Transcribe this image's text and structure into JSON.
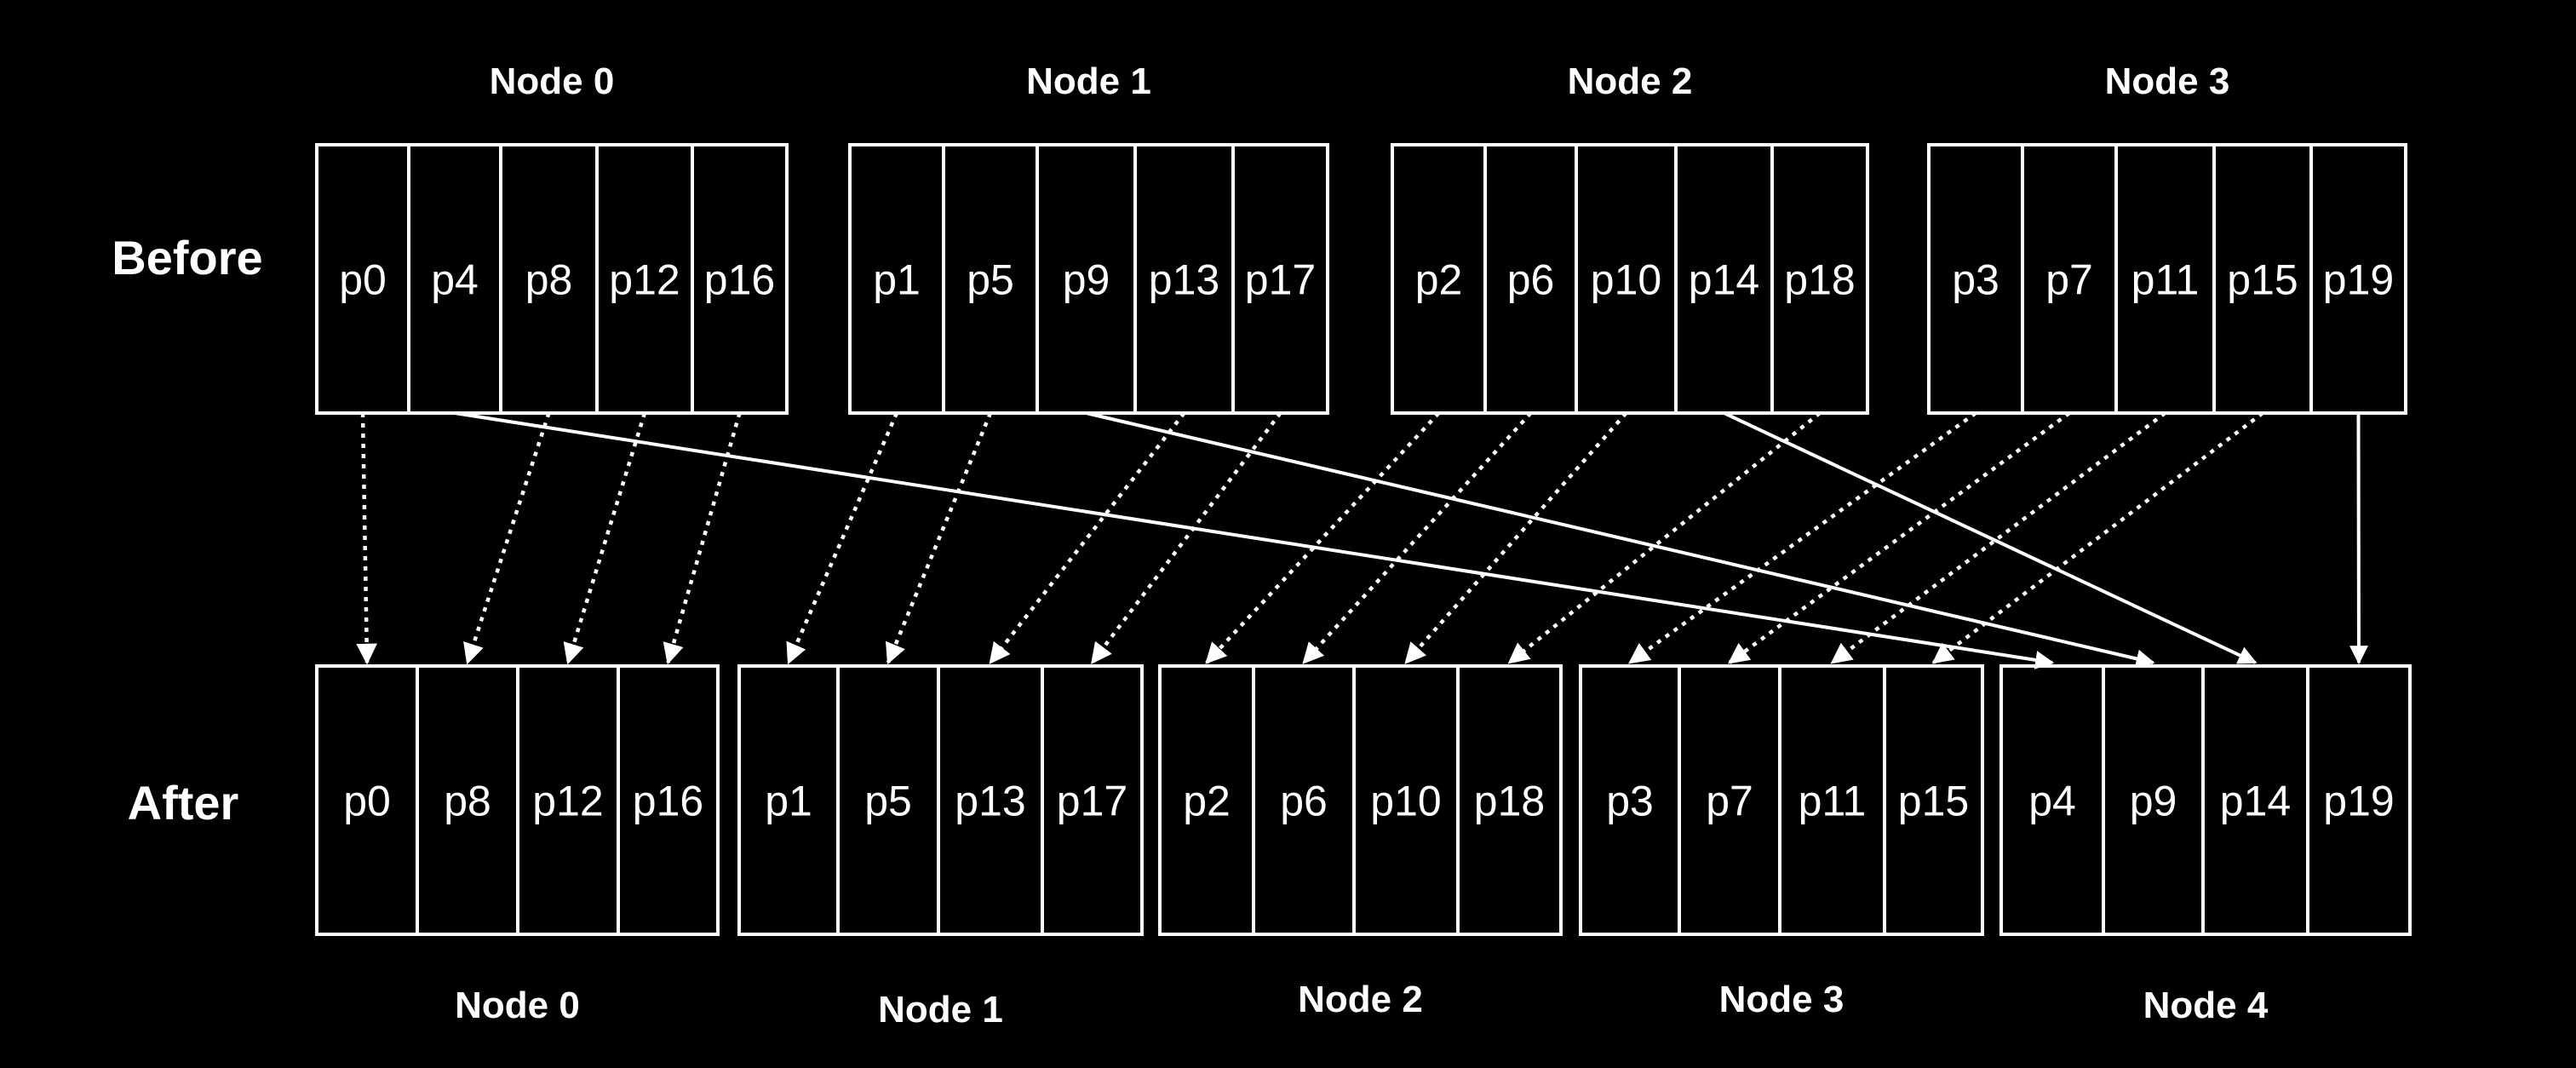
{
  "before": {
    "row_label": "Before",
    "nodes": [
      {
        "label": "Node 0",
        "partitions": [
          "p0",
          "p4",
          "p8",
          "p12",
          "p16"
        ]
      },
      {
        "label": "Node 1",
        "partitions": [
          "p1",
          "p5",
          "p9",
          "p13",
          "p17"
        ]
      },
      {
        "label": "Node 2",
        "partitions": [
          "p2",
          "p6",
          "p10",
          "p14",
          "p18"
        ]
      },
      {
        "label": "Node 3",
        "partitions": [
          "p3",
          "p7",
          "p11",
          "p15",
          "p19"
        ]
      }
    ]
  },
  "after": {
    "row_label": "After",
    "nodes": [
      {
        "label": "Node 0",
        "partitions": [
          "p0",
          "p8",
          "p12",
          "p16"
        ]
      },
      {
        "label": "Node 1",
        "partitions": [
          "p1",
          "p5",
          "p13",
          "p17"
        ]
      },
      {
        "label": "Node 2",
        "partitions": [
          "p2",
          "p6",
          "p10",
          "p18"
        ]
      },
      {
        "label": "Node 3",
        "partitions": [
          "p3",
          "p7",
          "p11",
          "p15"
        ]
      },
      {
        "label": "Node 4",
        "partitions": [
          "p4",
          "p9",
          "p14",
          "p19"
        ]
      }
    ]
  },
  "moves": [
    {
      "partition": "p0",
      "style": "dotted"
    },
    {
      "partition": "p4",
      "style": "solid"
    },
    {
      "partition": "p8",
      "style": "dotted"
    },
    {
      "partition": "p12",
      "style": "dotted"
    },
    {
      "partition": "p16",
      "style": "dotted"
    },
    {
      "partition": "p1",
      "style": "dotted"
    },
    {
      "partition": "p5",
      "style": "dotted"
    },
    {
      "partition": "p9",
      "style": "solid"
    },
    {
      "partition": "p13",
      "style": "dotted"
    },
    {
      "partition": "p17",
      "style": "dotted"
    },
    {
      "partition": "p2",
      "style": "dotted"
    },
    {
      "partition": "p6",
      "style": "dotted"
    },
    {
      "partition": "p10",
      "style": "dotted"
    },
    {
      "partition": "p14",
      "style": "solid"
    },
    {
      "partition": "p18",
      "style": "dotted"
    },
    {
      "partition": "p3",
      "style": "dotted"
    },
    {
      "partition": "p7",
      "style": "dotted"
    },
    {
      "partition": "p11",
      "style": "dotted"
    },
    {
      "partition": "p15",
      "style": "dotted"
    },
    {
      "partition": "p19",
      "style": "solid"
    }
  ],
  "colors": {
    "background": "#000000",
    "foreground": "#ffffff"
  }
}
